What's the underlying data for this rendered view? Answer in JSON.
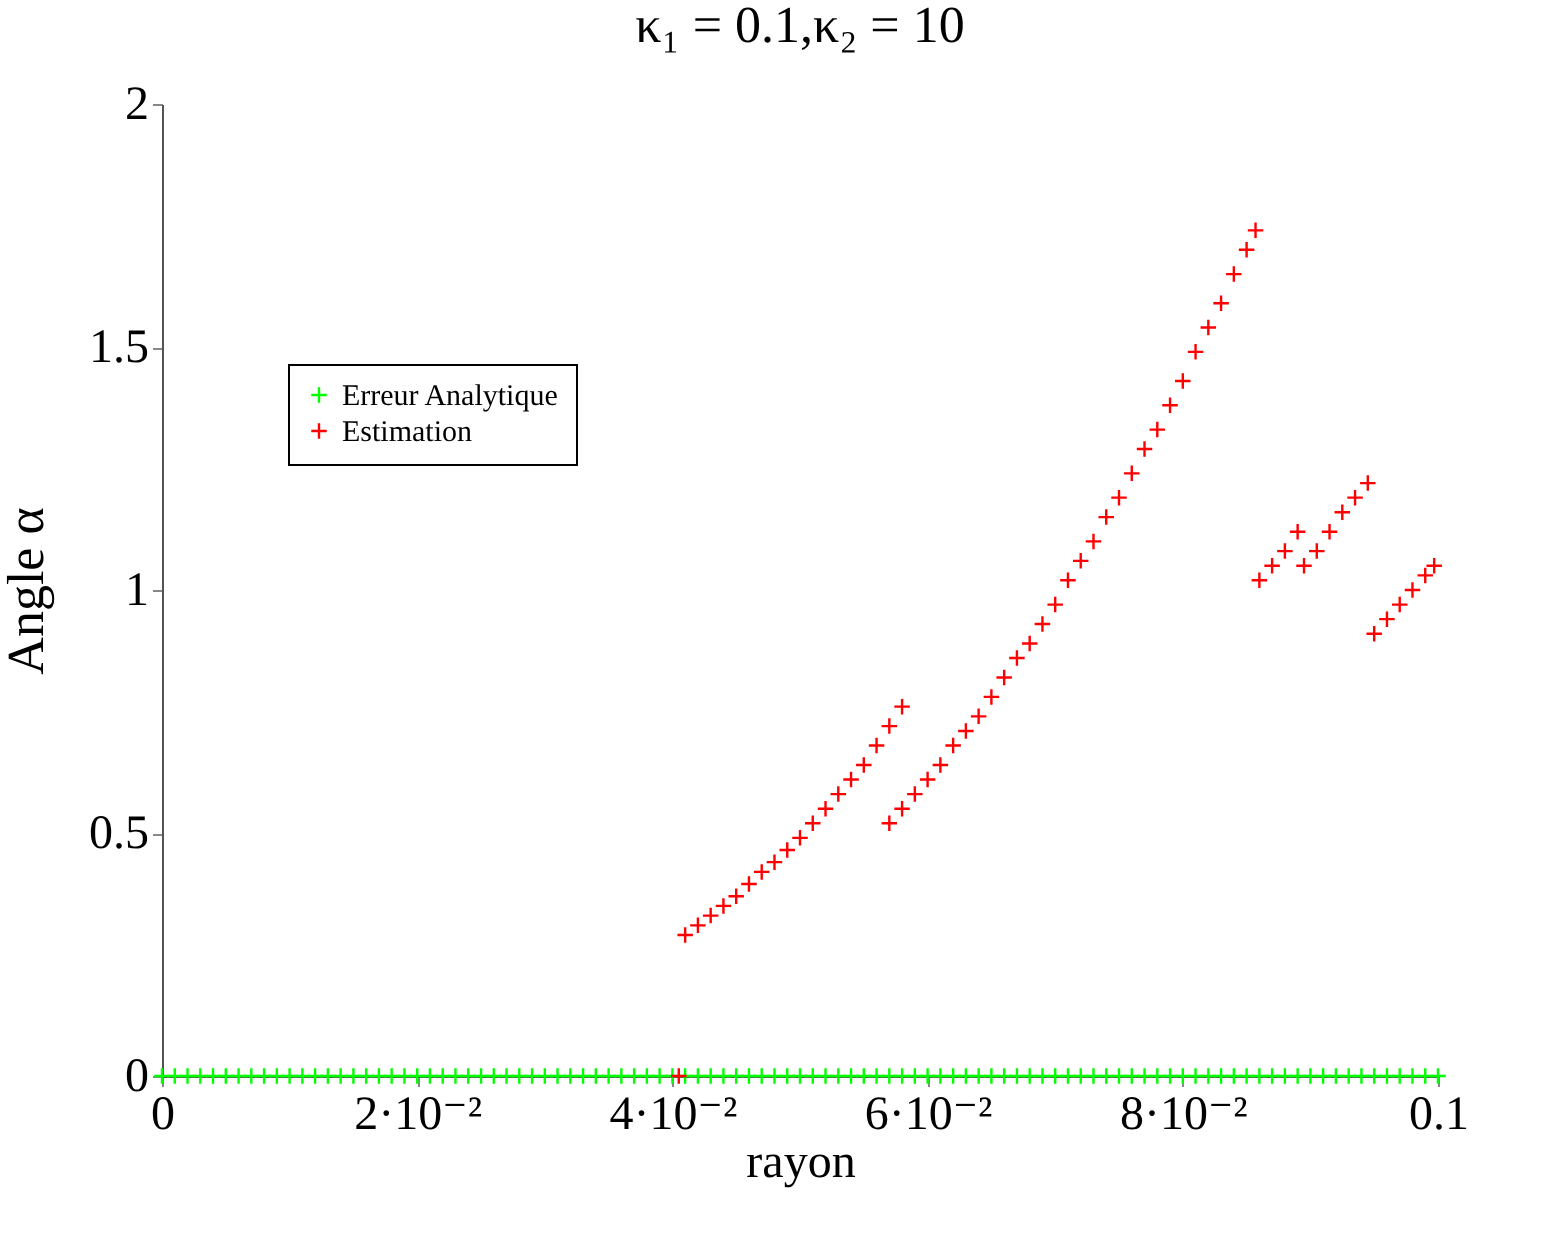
{
  "chart_data": {
    "type": "scatter",
    "title": "κ₁ = 0.1,κ₂ = 10",
    "xlabel": "rayon",
    "ylabel": "Angle α",
    "xlim": [
      0,
      0.1
    ],
    "xticks": [
      0,
      {
        "value": 0.02,
        "label": "2·10⁻²"
      },
      {
        "value": 0.04,
        "label": "4·10⁻²"
      },
      {
        "value": 0.06,
        "label": "6·10⁻²"
      },
      {
        "value": 0.08,
        "label": "8·10⁻²"
      },
      0.1
    ],
    "ylim": [
      0,
      2
    ],
    "yticks": [
      0,
      0.5,
      1,
      1.5,
      2
    ],
    "grid": false,
    "legend": "top left",
    "marker": "cross",
    "series": [
      {
        "name": "Erreur Analytique",
        "color": "#00ff00",
        "x": [
          0,
          0.001,
          0.002,
          0.003,
          0.004,
          0.005,
          0.006,
          0.007,
          0.008,
          0.009,
          0.01,
          0.011,
          0.012,
          0.013,
          0.014,
          0.015,
          0.016,
          0.017,
          0.018,
          0.019,
          0.02,
          0.021,
          0.022,
          0.023,
          0.024,
          0.025,
          0.026,
          0.027,
          0.028,
          0.029,
          0.03,
          0.031,
          0.032,
          0.033,
          0.034,
          0.035,
          0.036,
          0.037,
          0.038,
          0.039,
          0.04,
          0.041,
          0.042,
          0.043,
          0.044,
          0.045,
          0.046,
          0.047,
          0.048,
          0.049,
          0.05,
          0.051,
          0.052,
          0.053,
          0.054,
          0.055,
          0.056,
          0.057,
          0.058,
          0.059,
          0.06,
          0.061,
          0.062,
          0.063,
          0.064,
          0.065,
          0.066,
          0.067,
          0.068,
          0.069,
          0.07,
          0.071,
          0.072,
          0.073,
          0.074,
          0.075,
          0.076,
          0.077,
          0.078,
          0.079,
          0.08,
          0.081,
          0.082,
          0.083,
          0.084,
          0.085,
          0.086,
          0.087,
          0.088,
          0.089,
          0.09,
          0.091,
          0.092,
          0.093,
          0.094,
          0.095,
          0.096,
          0.097,
          0.098,
          0.099,
          0.1
        ],
        "values": [
          0,
          0,
          0,
          0,
          0,
          0,
          0,
          0,
          0,
          0,
          0,
          0,
          0,
          0,
          0,
          0,
          0,
          0,
          0,
          0,
          0,
          0,
          0,
          0,
          0,
          0,
          0,
          0,
          0,
          0,
          0,
          0,
          0,
          0,
          0,
          0,
          0,
          0,
          0,
          0,
          0,
          0,
          0,
          0,
          0,
          0,
          0,
          0,
          0,
          0,
          0,
          0,
          0,
          0,
          0,
          0,
          0,
          0,
          0,
          0,
          0,
          0,
          0,
          0,
          0,
          0,
          0,
          0,
          0,
          0,
          0,
          0,
          0,
          0,
          0,
          0,
          0,
          0,
          0,
          0,
          0,
          0,
          0,
          0,
          0,
          0,
          0,
          0,
          0,
          0,
          0,
          0,
          0,
          0,
          0,
          0,
          0,
          0,
          0,
          0,
          0
        ]
      },
      {
        "name": "Estimation",
        "color": "#ff0000",
        "x": [
          0.0405,
          0.041,
          0.042,
          0.043,
          0.044,
          0.045,
          0.046,
          0.047,
          0.048,
          0.049,
          0.05,
          0.051,
          0.052,
          0.053,
          0.054,
          0.055,
          0.056,
          0.057,
          0.058,
          0.057,
          0.058,
          0.059,
          0.06,
          0.061,
          0.062,
          0.063,
          0.064,
          0.065,
          0.066,
          0.067,
          0.068,
          0.069,
          0.07,
          0.071,
          0.072,
          0.073,
          0.074,
          0.075,
          0.076,
          0.077,
          0.078,
          0.079,
          0.08,
          0.081,
          0.082,
          0.083,
          0.084,
          0.085,
          0.0857,
          0.086,
          0.087,
          0.088,
          0.089,
          0.0895,
          0.0905,
          0.0915,
          0.0925,
          0.0935,
          0.0945,
          0.095,
          0.096,
          0.097,
          0.098,
          0.099,
          0.0997
        ],
        "values": [
          0,
          0.29,
          0.31,
          0.33,
          0.35,
          0.37,
          0.395,
          0.42,
          0.44,
          0.465,
          0.49,
          0.52,
          0.55,
          0.58,
          0.61,
          0.64,
          0.68,
          0.72,
          0.76,
          0.52,
          0.55,
          0.58,
          0.61,
          0.64,
          0.68,
          0.71,
          0.74,
          0.78,
          0.82,
          0.86,
          0.89,
          0.93,
          0.97,
          1.02,
          1.06,
          1.1,
          1.15,
          1.19,
          1.24,
          1.29,
          1.33,
          1.38,
          1.43,
          1.49,
          1.54,
          1.59,
          1.65,
          1.7,
          1.74,
          1.02,
          1.05,
          1.08,
          1.12,
          1.05,
          1.08,
          1.12,
          1.16,
          1.19,
          1.22,
          0.91,
          0.94,
          0.97,
          1.0,
          1.03,
          1.05
        ]
      }
    ]
  }
}
